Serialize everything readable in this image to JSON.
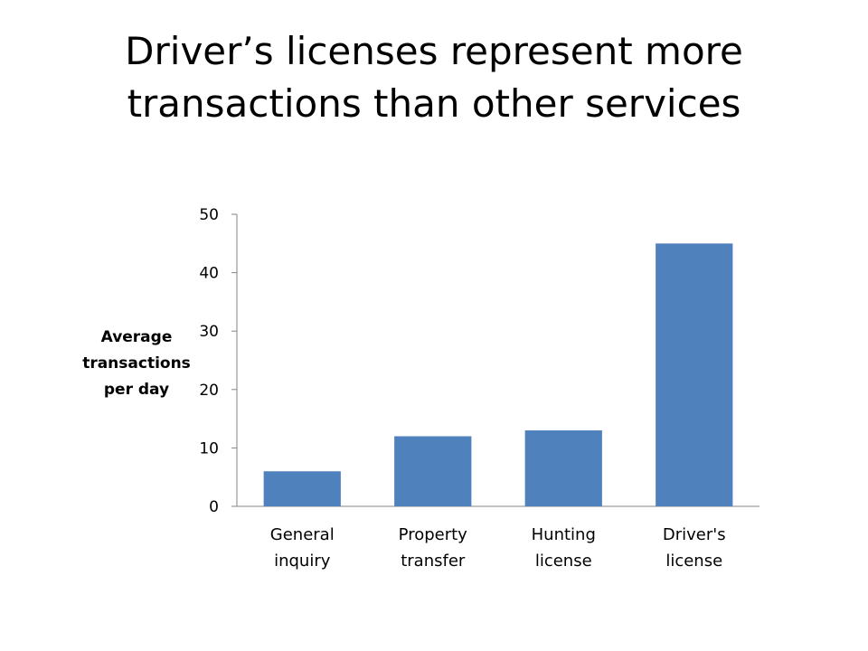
{
  "slide": {
    "title_line1": "Driver’s licenses represent more",
    "title_line2": "transactions than other services"
  },
  "chart_data": {
    "type": "bar",
    "title": "",
    "categories": [
      "General inquiry",
      "Property transfer",
      "Hunting license",
      "Driver's license"
    ],
    "category_label_lines": [
      [
        "General",
        "inquiry"
      ],
      [
        "Property",
        "transfer"
      ],
      [
        "Hunting",
        "license"
      ],
      [
        "Driver's",
        "license"
      ]
    ],
    "series": [
      {
        "values": [
          6,
          12,
          13,
          45
        ]
      }
    ],
    "ylabel_lines": [
      "Average",
      "transactions",
      "per day"
    ],
    "xlabel": "",
    "ylim": [
      0,
      50
    ],
    "yticks": [
      0,
      10,
      20,
      30,
      40,
      50
    ],
    "grid": false,
    "legend": "none",
    "bar_color": "#4F81BD"
  }
}
